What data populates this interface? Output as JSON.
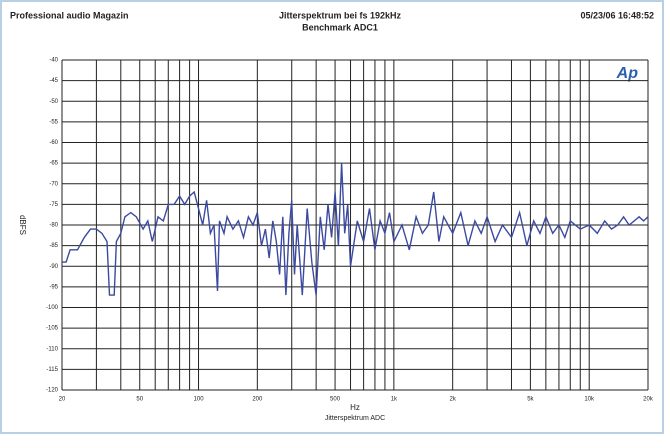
{
  "chart_data": {
    "type": "line",
    "header_left": "Professional audio Magazin",
    "title": "Jitterspektrum bei fs 192kHz",
    "subtitle": "Benchmark ADC1",
    "timestamp": "05/23/06 16:48:52",
    "logo": "Ap",
    "ylabel": "dBFS",
    "xlabel": "Hz",
    "xlabel_note": "Jitterspektrum ADC",
    "xscale": "log",
    "grid": true,
    "xlim": [
      20,
      20000
    ],
    "ylim": [
      -120,
      -40
    ],
    "xticks": [
      20,
      50,
      100,
      200,
      500,
      {
        "value": 1000,
        "label": "1k"
      },
      {
        "value": 2000,
        "label": "2k"
      },
      {
        "value": 5000,
        "label": "5k"
      },
      {
        "value": 10000,
        "label": "10k"
      },
      {
        "value": 20000,
        "label": "20k"
      }
    ],
    "xminor_ticks": [
      30,
      40,
      60,
      70,
      80,
      90,
      300,
      400,
      600,
      700,
      800,
      900,
      3000,
      4000,
      6000,
      7000,
      8000,
      9000
    ],
    "yticks": [
      -40,
      -45,
      -50,
      -55,
      -60,
      -65,
      -70,
      -75,
      -80,
      -85,
      -90,
      -95,
      -100,
      -105,
      -110,
      -115,
      -120
    ],
    "x": [
      20,
      21,
      22,
      24,
      26,
      28,
      30,
      32,
      34,
      35,
      37,
      38,
      40,
      42,
      45,
      48,
      52,
      55,
      58,
      62,
      66,
      70,
      75,
      80,
      85,
      90,
      95,
      100,
      105,
      110,
      115,
      120,
      125,
      128,
      135,
      140,
      150,
      160,
      170,
      180,
      190,
      200,
      210,
      220,
      230,
      240,
      250,
      260,
      270,
      280,
      290,
      300,
      310,
      320,
      340,
      360,
      380,
      400,
      420,
      440,
      460,
      480,
      500,
      520,
      540,
      560,
      580,
      600,
      650,
      700,
      750,
      800,
      850,
      900,
      950,
      1000,
      1100,
      1200,
      1300,
      1400,
      1500,
      1600,
      1700,
      1800,
      2000,
      2200,
      2400,
      2600,
      2800,
      3000,
      3300,
      3600,
      4000,
      4400,
      4800,
      5200,
      5600,
      6000,
      6500,
      7000,
      7500,
      8000,
      9000,
      10000,
      11000,
      12000,
      13000,
      14000,
      15000,
      16000,
      17000,
      18000,
      19000,
      20000
    ],
    "series": [
      {
        "color": "#3b4aa0",
        "values": [
          -89,
          -89,
          -86,
          -86,
          -83,
          -81,
          -81,
          -82,
          -84,
          -97,
          -97,
          -84,
          -82,
          -78,
          -77,
          -78,
          -81,
          -79,
          -84,
          -78,
          -79,
          -75,
          -75,
          -73,
          -75,
          -73,
          -72,
          -76,
          -80,
          -74,
          -82,
          -80,
          -96,
          -79,
          -82,
          -78,
          -81,
          -79,
          -83,
          -78,
          -80,
          -77,
          -85,
          -81,
          -88,
          -79,
          -84,
          -92,
          -78,
          -97,
          -82,
          -74,
          -92,
          -80,
          -97,
          -76,
          -89,
          -97,
          -78,
          -86,
          -75,
          -83,
          -72,
          -85,
          -65,
          -82,
          -75,
          -90,
          -79,
          -84,
          -76,
          -86,
          -79,
          -82,
          -77,
          -84,
          -80,
          -86,
          -78,
          -82,
          -80,
          -72,
          -84,
          -78,
          -82,
          -77,
          -85,
          -79,
          -82,
          -78,
          -84,
          -80,
          -83,
          -77,
          -85,
          -79,
          -82,
          -78,
          -82,
          -80,
          -83,
          -79,
          -81,
          -80,
          -82,
          -79,
          -81,
          -80,
          -78,
          -80,
          -79,
          -78,
          -79,
          -78
        ]
      }
    ]
  }
}
